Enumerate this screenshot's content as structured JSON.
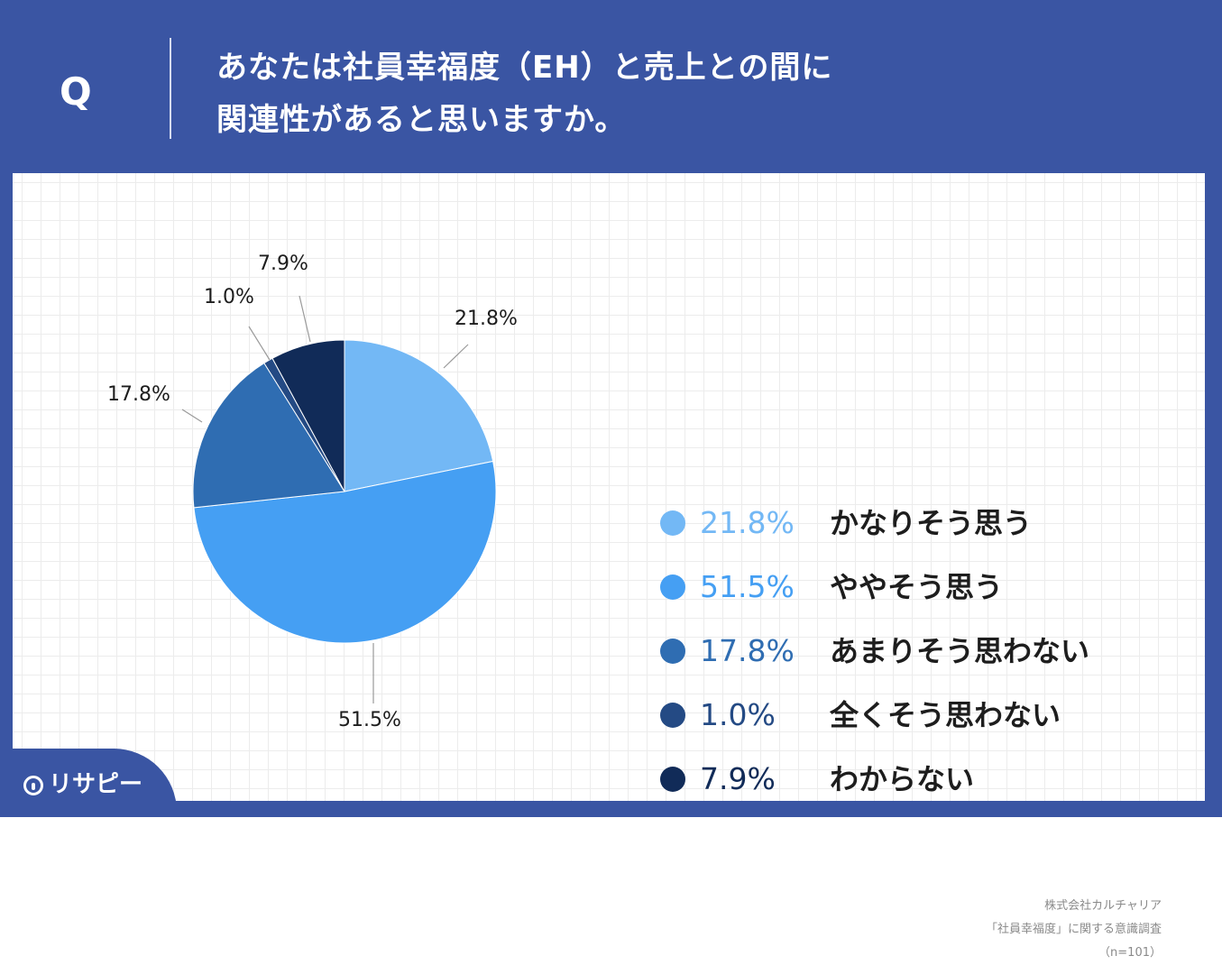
{
  "question": {
    "marker": "Q",
    "line1": "あなたは社員幸福度（EH）と売上との間に",
    "line2": "関連性があると思いますか。"
  },
  "chart_data": {
    "type": "pie",
    "slices": [
      {
        "label": "かなりそう思う",
        "value": 21.8,
        "display": "21.8%",
        "color": "#73b8f5"
      },
      {
        "label": "ややそう思う",
        "value": 51.5,
        "display": "51.5%",
        "color": "#459ff3"
      },
      {
        "label": "あまりそう思わない",
        "value": 17.8,
        "display": "17.8%",
        "color": "#2f6db2"
      },
      {
        "label": "全くそう思わない",
        "value": 1.0,
        "display": "1.0%",
        "color": "#244a84"
      },
      {
        "label": "わからない",
        "value": 7.9,
        "display": "7.9%",
        "color": "#112b58"
      }
    ],
    "start": "12 o'clock",
    "direction": "clockwise",
    "legend_position": "right"
  },
  "credit": {
    "line1": "株式会社カルチャリア",
    "line2": "「社員幸福度」に関する意識調査",
    "line3": "（n=101）"
  },
  "logo": {
    "text": "リサピー"
  },
  "colors": {
    "frame": "#3a55a3",
    "panel": "#ffffff"
  }
}
